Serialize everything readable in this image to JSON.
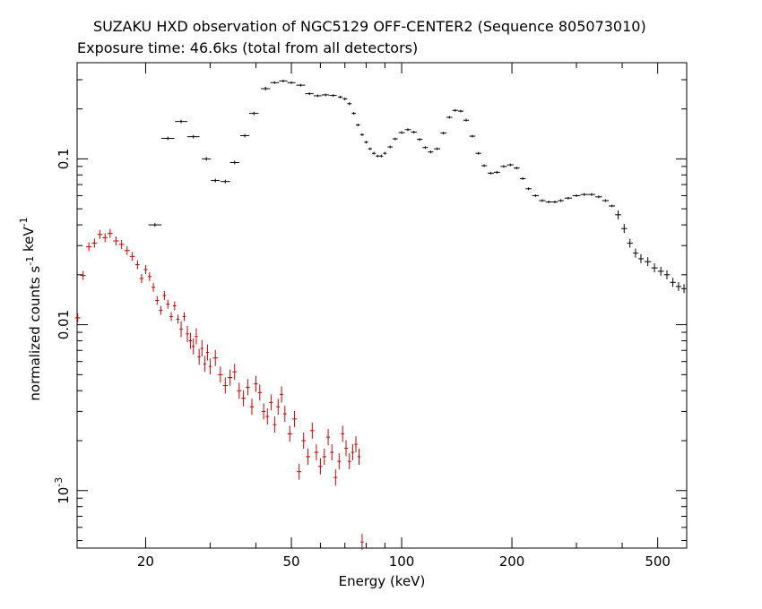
{
  "chart_data": {
    "type": "scatter",
    "title": "SUZAKU HXD observation of NGC5129 OFF-CENTER2 (Sequence 805073010)",
    "subtitle": "Exposure time: 46.6ks (total from all detectors)",
    "xlabel": "Energy (keV)",
    "ylabel": "normalized counts s^-1 keV^-1",
    "xscale": "log",
    "yscale": "log",
    "xlim": [
      13,
      600
    ],
    "ylim": [
      0.00045,
      0.38
    ],
    "grid": false,
    "x_ticks": [
      {
        "v": 20,
        "label": "20"
      },
      {
        "v": 50,
        "label": "50"
      },
      {
        "v": 100,
        "label": "100"
      },
      {
        "v": 200,
        "label": "200"
      },
      {
        "v": 500,
        "label": "500"
      }
    ],
    "y_ticks": [
      {
        "v": 0.1,
        "label": "0.1"
      },
      {
        "v": 0.01,
        "label": "0.01"
      },
      {
        "v": 0.001,
        "label": "10^-3"
      }
    ],
    "series": [
      {
        "color": "#000000",
        "points": [
          [
            21.2,
            0.04
          ],
          [
            23.0,
            0.133
          ],
          [
            25.0,
            0.168
          ],
          [
            27.0,
            0.136
          ],
          [
            29.3,
            0.1
          ],
          [
            31.0,
            0.074
          ],
          [
            33.0,
            0.073
          ],
          [
            35.0,
            0.095
          ],
          [
            37.3,
            0.138
          ],
          [
            39.5,
            0.188
          ],
          [
            42.5,
            0.265
          ],
          [
            45.0,
            0.288
          ],
          [
            47.5,
            0.295
          ],
          [
            50.0,
            0.288
          ],
          [
            53.0,
            0.278
          ],
          [
            56.0,
            0.247
          ],
          [
            59.0,
            0.24
          ],
          [
            62.0,
            0.243
          ],
          [
            65.0,
            0.241
          ],
          [
            68.0,
            0.236
          ],
          [
            70.0,
            0.23
          ],
          [
            72.0,
            0.215
          ],
          [
            74.0,
            0.188
          ],
          [
            76.0,
            0.16
          ],
          [
            78.0,
            0.14
          ],
          [
            80.0,
            0.126
          ],
          [
            82.0,
            0.115
          ],
          [
            84.0,
            0.108
          ],
          [
            86.0,
            0.104
          ],
          [
            88.0,
            0.104
          ],
          [
            90.0,
            0.108
          ],
          [
            93.0,
            0.118
          ],
          [
            96.0,
            0.132
          ],
          [
            100.0,
            0.144
          ],
          [
            104.0,
            0.15
          ],
          [
            108.0,
            0.145
          ],
          [
            112.0,
            0.131
          ],
          [
            116.0,
            0.117
          ],
          [
            120.0,
            0.11
          ],
          [
            125.0,
            0.115
          ],
          [
            130.0,
            0.143
          ],
          [
            135.0,
            0.178
          ],
          [
            140.0,
            0.196
          ],
          [
            145.0,
            0.194
          ],
          [
            150.0,
            0.171
          ],
          [
            156.0,
            0.137
          ],
          [
            162.0,
            0.108
          ],
          [
            168.0,
            0.091
          ],
          [
            175.0,
            0.082
          ],
          [
            182.0,
            0.083
          ],
          [
            190.0,
            0.09
          ],
          [
            198.0,
            0.092
          ],
          [
            206.0,
            0.088
          ],
          [
            214.0,
            0.076
          ],
          [
            222.0,
            0.066
          ],
          [
            232.0,
            0.06
          ],
          [
            242.0,
            0.056
          ],
          [
            252.0,
            0.055
          ],
          [
            262.0,
            0.055
          ],
          [
            272.0,
            0.056
          ],
          [
            285.0,
            0.058
          ],
          [
            300.0,
            0.06
          ],
          [
            315.0,
            0.061
          ],
          [
            330.0,
            0.061
          ],
          [
            345.0,
            0.059
          ],
          [
            360.0,
            0.056
          ],
          [
            375.0,
            0.052
          ],
          [
            390.0,
            0.046
          ],
          [
            405.0,
            0.038
          ],
          [
            420.0,
            0.031
          ],
          [
            435.0,
            0.027
          ],
          [
            450.0,
            0.025
          ],
          [
            470.0,
            0.024
          ],
          [
            490.0,
            0.022
          ],
          [
            510.0,
            0.021
          ],
          [
            530.0,
            0.02
          ],
          [
            550.0,
            0.018
          ],
          [
            570.0,
            0.017
          ],
          [
            590.0,
            0.0165
          ]
        ]
      },
      {
        "color": "#cc0000",
        "points": [
          [
            13.05,
            0.011
          ],
          [
            13.5,
            0.0198
          ],
          [
            14.0,
            0.0295
          ],
          [
            14.5,
            0.031
          ],
          [
            15.0,
            0.035
          ],
          [
            15.5,
            0.0335
          ],
          [
            16.0,
            0.0355
          ],
          [
            16.6,
            0.032
          ],
          [
            17.2,
            0.0305
          ],
          [
            17.8,
            0.028
          ],
          [
            18.4,
            0.0258
          ],
          [
            19.0,
            0.023
          ],
          [
            19.5,
            0.019
          ],
          [
            20.0,
            0.0215
          ],
          [
            20.5,
            0.0195
          ],
          [
            21.0,
            0.0168
          ],
          [
            21.5,
            0.014
          ],
          [
            22.0,
            0.0122
          ],
          [
            22.5,
            0.015
          ],
          [
            23.0,
            0.0133
          ],
          [
            23.5,
            0.0112
          ],
          [
            24.0,
            0.013
          ],
          [
            24.5,
            0.0108
          ],
          [
            25.0,
            0.0094
          ],
          [
            25.5,
            0.0112
          ],
          [
            26.0,
            0.0088
          ],
          [
            26.5,
            0.008
          ],
          [
            27.0,
            0.0074
          ],
          [
            27.5,
            0.0085
          ],
          [
            28.0,
            0.0064
          ],
          [
            28.5,
            0.0072
          ],
          [
            29.0,
            0.0058
          ],
          [
            29.5,
            0.0068
          ],
          [
            30.0,
            0.0056
          ],
          [
            31.0,
            0.0063
          ],
          [
            32.0,
            0.005
          ],
          [
            33.0,
            0.0043
          ],
          [
            34.0,
            0.0048
          ],
          [
            35.0,
            0.0052
          ],
          [
            36.0,
            0.004
          ],
          [
            37.0,
            0.0036
          ],
          [
            38.0,
            0.0042
          ],
          [
            39.0,
            0.0032
          ],
          [
            40.0,
            0.0044
          ],
          [
            41.0,
            0.0039
          ],
          [
            42.0,
            0.003
          ],
          [
            43.0,
            0.0028
          ],
          [
            44.0,
            0.0034
          ],
          [
            45.0,
            0.0025
          ],
          [
            46.0,
            0.0032
          ],
          [
            47.0,
            0.0038
          ],
          [
            48.0,
            0.0029
          ],
          [
            49.5,
            0.0022
          ],
          [
            51.0,
            0.0027
          ],
          [
            52.5,
            0.0013
          ],
          [
            54.0,
            0.002
          ],
          [
            55.5,
            0.0016
          ],
          [
            57.0,
            0.0023
          ],
          [
            58.5,
            0.0017
          ],
          [
            60.0,
            0.0014
          ],
          [
            61.5,
            0.0016
          ],
          [
            63.0,
            0.0021
          ],
          [
            64.5,
            0.0017
          ],
          [
            66.0,
            0.0012
          ],
          [
            67.5,
            0.0015
          ],
          [
            69.0,
            0.0022
          ],
          [
            70.5,
            0.0018
          ],
          [
            72.0,
            0.0015
          ],
          [
            73.5,
            0.0017
          ],
          [
            75.0,
            0.0019
          ],
          [
            76.5,
            0.0016
          ],
          [
            78.0,
            0.00049
          ]
        ]
      }
    ]
  }
}
